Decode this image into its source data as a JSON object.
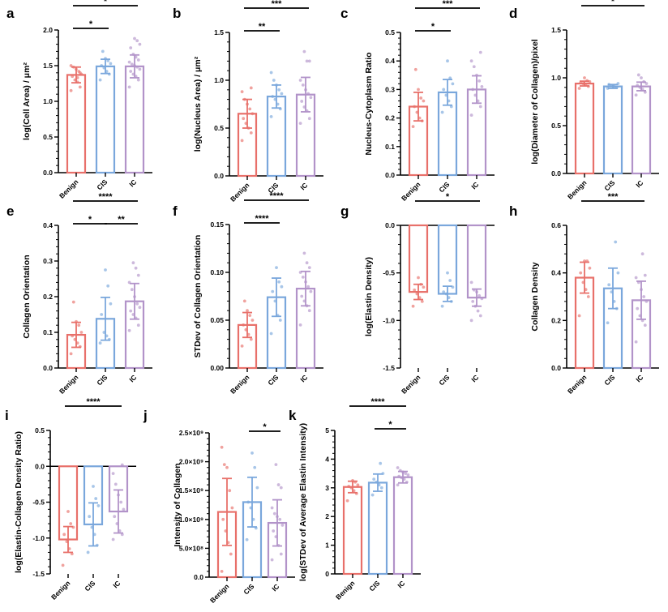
{
  "colors": {
    "Benign": "#e8706a",
    "CIS": "#7aa7dc",
    "IC": "#b293c9"
  },
  "chart_data": [
    {
      "panel": "a",
      "type": "bar",
      "categories": [
        "Benign",
        "CIS",
        "IC"
      ],
      "ylabel": "log(Cell Area) / μm²",
      "ylim": [
        0,
        2
      ],
      "ticks": [
        0,
        0.5,
        1,
        1.5,
        2
      ],
      "tick_labels": [
        "0.0",
        "0.5",
        "1.0",
        "1.5",
        "2.0"
      ],
      "means": [
        1.37,
        1.49,
        1.49
      ],
      "sd": [
        0.11,
        0.1,
        0.16
      ],
      "points": [
        [
          1.15,
          1.2,
          1.27,
          1.3,
          1.35,
          1.38,
          1.42,
          1.45,
          1.48,
          1.5,
          1.4,
          1.33
        ],
        [
          1.3,
          1.38,
          1.42,
          1.47,
          1.5,
          1.53,
          1.57,
          1.6,
          1.7
        ],
        [
          1.2,
          1.3,
          1.35,
          1.38,
          1.42,
          1.45,
          1.48,
          1.5,
          1.52,
          1.55,
          1.58,
          1.62,
          1.66,
          1.75,
          1.8,
          1.85,
          1.88
        ]
      ],
      "significance": [
        [
          0,
          1,
          "*"
        ],
        [
          0,
          2,
          "*"
        ]
      ]
    },
    {
      "panel": "b",
      "type": "bar",
      "categories": [
        "Benign",
        "CIS",
        "IC"
      ],
      "ylabel": "log(Nucleus Area) / μm²",
      "ylim": [
        0,
        1.5
      ],
      "ticks": [
        0,
        0.5,
        1,
        1.5
      ],
      "tick_labels": [
        "0.0",
        "0.5",
        "1.0",
        "1.5"
      ],
      "means": [
        0.65,
        0.83,
        0.85
      ],
      "sd": [
        0.15,
        0.12,
        0.18
      ],
      "points": [
        [
          0.37,
          0.45,
          0.5,
          0.55,
          0.6,
          0.65,
          0.7,
          0.75,
          0.8,
          0.88,
          0.92
        ],
        [
          0.62,
          0.7,
          0.75,
          0.8,
          0.83,
          0.86,
          0.9,
          0.95,
          1.0,
          1.08
        ],
        [
          0.55,
          0.6,
          0.68,
          0.72,
          0.78,
          0.82,
          0.86,
          0.9,
          0.95,
          1.0,
          1.2,
          1.2,
          1.3
        ]
      ],
      "significance": [
        [
          0,
          1,
          "**"
        ],
        [
          0,
          2,
          "***"
        ]
      ]
    },
    {
      "panel": "c",
      "type": "bar",
      "categories": [
        "Benign",
        "CIS",
        "IC"
      ],
      "ylabel": "Nucleus-Cytoplasm Ratio",
      "ylim": [
        0,
        0.5
      ],
      "ticks": [
        0,
        0.1,
        0.2,
        0.3,
        0.4,
        0.5
      ],
      "tick_labels": [
        "0.0",
        "0.1",
        "0.2",
        "0.3",
        "0.4",
        "0.5"
      ],
      "means": [
        0.24,
        0.29,
        0.3
      ],
      "sd": [
        0.05,
        0.045,
        0.048
      ],
      "points": [
        [
          0.17,
          0.19,
          0.2,
          0.22,
          0.24,
          0.26,
          0.27,
          0.3,
          0.37
        ],
        [
          0.22,
          0.24,
          0.26,
          0.28,
          0.3,
          0.32,
          0.34,
          0.4
        ],
        [
          0.21,
          0.24,
          0.26,
          0.28,
          0.3,
          0.31,
          0.33,
          0.35,
          0.38,
          0.4,
          0.43
        ]
      ],
      "significance": [
        [
          0,
          1,
          "*"
        ],
        [
          0,
          2,
          "***"
        ]
      ]
    },
    {
      "panel": "d",
      "type": "bar",
      "categories": [
        "Benign",
        "CIS",
        "IC"
      ],
      "ylabel": "log(Diameter of Collagen)/pixel",
      "ylim": [
        0,
        1.5
      ],
      "ticks": [
        0,
        0.5,
        1,
        1.5
      ],
      "tick_labels": [
        "0.0",
        "0.5",
        "1.0",
        "1.5"
      ],
      "means": [
        0.94,
        0.91,
        0.91
      ],
      "sd": [
        0.025,
        0.02,
        0.045
      ],
      "points": [
        [
          0.89,
          0.91,
          0.93,
          0.94,
          0.95,
          0.96,
          0.97,
          1.0
        ],
        [
          0.89,
          0.9,
          0.91,
          0.92,
          0.93,
          0.94
        ],
        [
          0.82,
          0.85,
          0.88,
          0.9,
          0.92,
          0.94,
          0.96,
          1.0,
          1.03
        ]
      ],
      "significance": [
        [
          0,
          2,
          "*"
        ]
      ]
    },
    {
      "panel": "e",
      "type": "bar",
      "categories": [
        "Benign",
        "CIS",
        "IC"
      ],
      "ylabel": "Collagen Orientation",
      "ylim": [
        0,
        0.4
      ],
      "ticks": [
        0,
        0.1,
        0.2,
        0.3,
        0.4
      ],
      "tick_labels": [
        "0.0",
        "0.1",
        "0.2",
        "0.3",
        "0.4"
      ],
      "means": [
        0.093,
        0.138,
        0.187
      ],
      "sd": [
        0.035,
        0.06,
        0.05
      ],
      "points": [
        [
          0.04,
          0.06,
          0.07,
          0.08,
          0.09,
          0.1,
          0.12,
          0.13,
          0.185
        ],
        [
          0.07,
          0.08,
          0.09,
          0.1,
          0.15,
          0.18,
          0.23,
          0.275
        ],
        [
          0.105,
          0.12,
          0.14,
          0.15,
          0.16,
          0.17,
          0.18,
          0.2,
          0.22,
          0.24,
          0.26,
          0.28,
          0.295
        ]
      ],
      "significance": [
        [
          0,
          1,
          "*"
        ],
        [
          1,
          2,
          "**"
        ],
        [
          0,
          2,
          "****"
        ]
      ]
    },
    {
      "panel": "f",
      "type": "bar",
      "categories": [
        "Benign",
        "CIS",
        "IC"
      ],
      "ylabel": "STDev of Collagen Orientation",
      "ylim": [
        0,
        0.15
      ],
      "ticks": [
        0,
        0.05,
        0.1,
        0.15
      ],
      "tick_labels": [
        "0.00",
        "0.05",
        "0.10",
        "0.15"
      ],
      "means": [
        0.045,
        0.074,
        0.083
      ],
      "sd": [
        0.013,
        0.02,
        0.018
      ],
      "points": [
        [
          0.023,
          0.03,
          0.035,
          0.04,
          0.045,
          0.05,
          0.055,
          0.06,
          0.07
        ],
        [
          0.036,
          0.05,
          0.055,
          0.07,
          0.08,
          0.085,
          0.09,
          0.105
        ],
        [
          0.045,
          0.06,
          0.065,
          0.07,
          0.075,
          0.08,
          0.085,
          0.09,
          0.095,
          0.1,
          0.105,
          0.11,
          0.12
        ]
      ],
      "significance": [
        [
          0,
          1,
          "****"
        ],
        [
          0,
          2,
          "****"
        ]
      ]
    },
    {
      "panel": "g",
      "type": "bar",
      "categories": [
        "Benign",
        "CIS",
        "IC"
      ],
      "ylabel": "log(Elastin Density)",
      "ylim": [
        -1.5,
        0
      ],
      "ticks": [
        -1.5,
        -1,
        -0.5,
        0
      ],
      "tick_labels": [
        "-1.5",
        "-1.0",
        "-0.5",
        "0.0"
      ],
      "means": [
        -0.7,
        -0.72,
        -0.76
      ],
      "sd": [
        0.08,
        0.08,
        0.09
      ],
      "points": [
        [
          -0.85,
          -0.8,
          -0.76,
          -0.72,
          -0.68,
          -0.65,
          -0.62,
          -0.55
        ],
        [
          -0.85,
          -0.8,
          -0.76,
          -0.72,
          -0.7,
          -0.65,
          -0.58,
          -0.5
        ],
        [
          -1.0,
          -0.95,
          -0.9,
          -0.85,
          -0.8,
          -0.77,
          -0.74,
          -0.7,
          -0.68,
          -0.6
        ]
      ],
      "significance": [
        [
          0,
          2,
          "*"
        ]
      ]
    },
    {
      "panel": "h",
      "type": "bar",
      "categories": [
        "Benign",
        "CIS",
        "IC"
      ],
      "ylabel": "Collagen Density",
      "ylim": [
        0,
        0.6
      ],
      "ticks": [
        0,
        0.2,
        0.4,
        0.6
      ],
      "tick_labels": [
        "0.0",
        "0.2",
        "0.4",
        "0.6"
      ],
      "means": [
        0.38,
        0.335,
        0.285
      ],
      "sd": [
        0.065,
        0.085,
        0.08
      ],
      "points": [
        [
          0.22,
          0.3,
          0.33,
          0.36,
          0.4,
          0.42,
          0.45,
          0.45
        ],
        [
          0.19,
          0.25,
          0.28,
          0.32,
          0.35,
          0.4,
          0.53
        ],
        [
          0.11,
          0.18,
          0.2,
          0.22,
          0.25,
          0.28,
          0.3,
          0.33,
          0.36,
          0.38,
          0.39,
          0.48
        ]
      ],
      "significance": [
        [
          0,
          2,
          "***"
        ]
      ]
    },
    {
      "panel": "i",
      "type": "bar",
      "categories": [
        "Benign",
        "CIS",
        "IC"
      ],
      "ylabel": "log(Elastin-Collagen Density Ratio)",
      "ylim": [
        -1.5,
        0.5
      ],
      "ticks": [
        -1.5,
        -1,
        -0.5,
        0,
        0.5
      ],
      "tick_labels": [
        "-1.5",
        "-1.0",
        "-0.5",
        "0.0",
        "0.5"
      ],
      "means": [
        -1.02,
        -0.81,
        -0.63
      ],
      "sd": [
        0.18,
        0.3,
        0.3
      ],
      "points": [
        [
          -1.38,
          -1.22,
          -1.15,
          -1.05,
          -0.95,
          -0.85,
          -0.8,
          -0.63
        ],
        [
          -1.2,
          -1.1,
          -0.95,
          -0.85,
          -0.7,
          -0.55,
          -0.45,
          -0.28
        ],
        [
          -1.02,
          -0.95,
          -0.9,
          -0.8,
          -0.7,
          -0.6,
          -0.5,
          -0.4,
          -0.25,
          -0.1,
          0.02
        ]
      ],
      "significance": [
        [
          0,
          2,
          "****"
        ]
      ]
    },
    {
      "panel": "j",
      "type": "bar",
      "categories": [
        "Benign",
        "CIS",
        "IC"
      ],
      "ylabel": "Intensity of Collagen",
      "ylim": [
        0,
        2500000000
      ],
      "ticks": [
        0,
        500000000,
        1000000000,
        1500000000,
        2000000000,
        2500000000
      ],
      "tick_labels": [
        "0.0",
        "5.0×10⁸",
        "1.0×10⁹",
        "1.5×10⁹",
        "2.0×10⁹",
        "2.5×10⁹"
      ],
      "means": [
        1130000000,
        1300000000,
        940000000
      ],
      "sd": [
        580000000,
        430000000,
        400000000
      ],
      "points": [
        [
          100000000,
          400000000,
          600000000,
          800000000,
          1000000000,
          1200000000,
          1500000000,
          1900000000,
          1950000000,
          2250000000
        ],
        [
          650000000,
          850000000,
          1000000000,
          1200000000,
          1300000000,
          1550000000,
          1900000000,
          2150000000
        ],
        [
          300000000,
          400000000,
          550000000,
          700000000,
          800000000,
          900000000,
          1000000000,
          1050000000,
          1100000000,
          1200000000,
          1550000000,
          1600000000,
          1950000000
        ]
      ],
      "significance": [
        [
          1,
          2,
          "*"
        ]
      ]
    },
    {
      "panel": "k",
      "type": "bar",
      "categories": [
        "Benign",
        "CIS",
        "IC"
      ],
      "ylabel": "log(STDev of Average Elastin Intensity)",
      "ylim": [
        0,
        5
      ],
      "ticks": [
        0,
        1,
        2,
        3,
        4,
        5
      ],
      "tick_labels": [
        "0",
        "1",
        "2",
        "3",
        "4",
        "5"
      ],
      "means": [
        3.03,
        3.18,
        3.37
      ],
      "sd": [
        0.2,
        0.3,
        0.2
      ],
      "points": [
        [
          2.55,
          2.8,
          2.9,
          3.0,
          3.05,
          3.1,
          3.2,
          3.25
        ],
        [
          2.75,
          3.0,
          3.1,
          3.2,
          3.3,
          3.5,
          3.85
        ],
        [
          3.1,
          3.2,
          3.3,
          3.35,
          3.4,
          3.45,
          3.5,
          3.55,
          3.6,
          3.7
        ]
      ],
      "significance": [
        [
          0,
          2,
          "****"
        ],
        [
          1,
          2,
          "*"
        ]
      ]
    }
  ]
}
